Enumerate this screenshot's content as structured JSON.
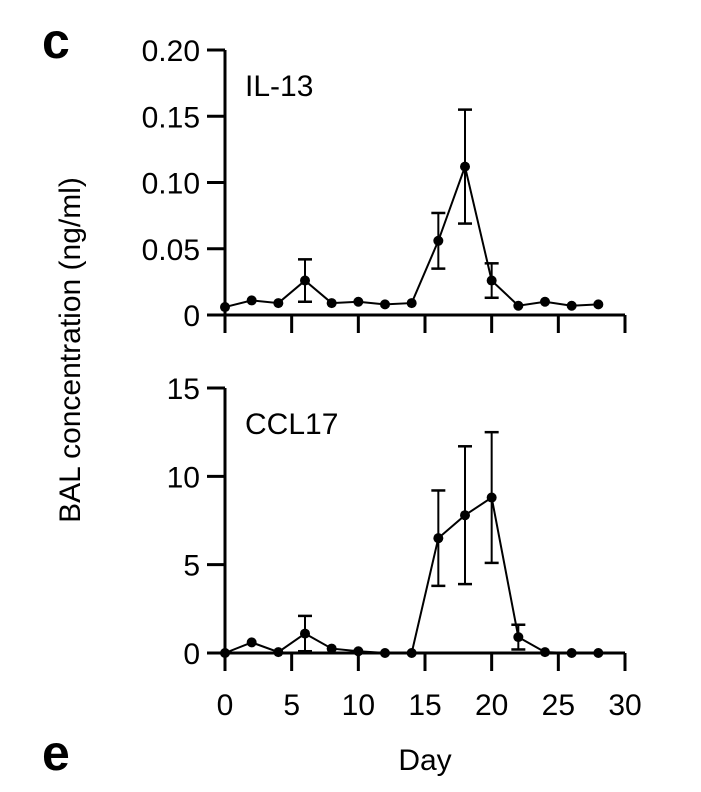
{
  "panel_labels": [
    "c",
    "e"
  ],
  "ylabel": "BAL concentration (ng/ml)",
  "chart_data": [
    {
      "type": "line",
      "title": "IL-13",
      "xlabel": "Day",
      "ylabel": "BAL concentration (ng/ml)",
      "xlim": [
        0,
        30
      ],
      "ylim": [
        0,
        0.2
      ],
      "xticks": [
        "0",
        "5",
        "10",
        "15",
        "20",
        "25",
        "30"
      ],
      "yticks": [
        "0",
        "0.05",
        "0.10",
        "0.15",
        "0.20"
      ],
      "grid": false,
      "x": [
        0,
        2,
        4,
        6,
        8,
        10,
        12,
        14,
        16,
        18,
        20,
        22,
        24,
        26,
        28
      ],
      "values": [
        0.006,
        0.011,
        0.009,
        0.026,
        0.009,
        0.01,
        0.008,
        0.009,
        0.056,
        0.112,
        0.026,
        0.007,
        0.01,
        0.007,
        0.008
      ],
      "errors": [
        0,
        0,
        0,
        0.016,
        0,
        0,
        0,
        0,
        0.021,
        0.043,
        0.013,
        0,
        0,
        0,
        0
      ],
      "color": "#000000"
    },
    {
      "type": "line",
      "title": "CCL17",
      "xlabel": "Day",
      "ylabel": "BAL concentration (ng/ml)",
      "xlim": [
        0,
        30
      ],
      "ylim": [
        0,
        15
      ],
      "xticks": [
        "0",
        "5",
        "10",
        "15",
        "20",
        "25",
        "30"
      ],
      "yticks": [
        "0",
        "5",
        "10",
        "15"
      ],
      "grid": false,
      "x": [
        0,
        2,
        4,
        6,
        8,
        10,
        12,
        14,
        16,
        18,
        20,
        22,
        24,
        26,
        28
      ],
      "values": [
        0,
        0.6,
        0.05,
        1.1,
        0.25,
        0.1,
        0,
        0,
        6.5,
        7.8,
        8.8,
        0.9,
        0.05,
        0,
        0
      ],
      "errors": [
        0,
        0,
        0,
        1.0,
        0,
        0,
        0,
        0,
        2.7,
        3.9,
        3.7,
        0.7,
        0,
        0,
        0
      ],
      "color": "#000000"
    }
  ]
}
